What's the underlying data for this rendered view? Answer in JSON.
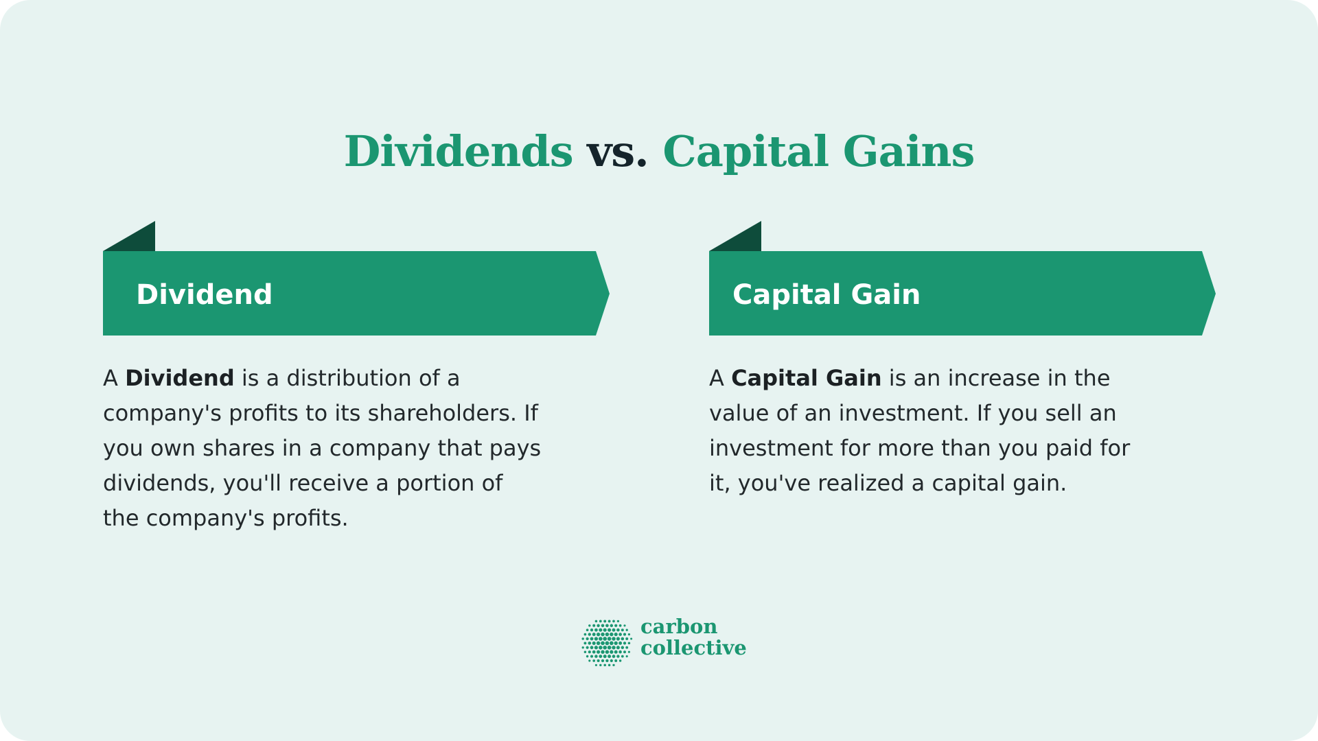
{
  "colors": {
    "background": "#e7f3f1",
    "accent_green": "#1b9671",
    "dark_green": "#0e4c3b",
    "title_dark": "#15242b",
    "body_text": "#22282b"
  },
  "title": {
    "part1": "Dividends",
    "part2": "vs.",
    "part3": "Capital Gains"
  },
  "dividend": {
    "heading": "Dividend",
    "prefix": "A ",
    "term": "Dividend",
    "lines": [
      " is a distribution of a",
      "company's profits to its shareholders. If",
      "you own shares in a company that pays",
      "dividends, you'll receive a portion of",
      "the company's profits."
    ]
  },
  "capital_gain": {
    "heading": "Capital Gain",
    "prefix": "A ",
    "term": "Capital Gain",
    "lines": [
      " is an increase in the",
      "value of an investment. If you sell an",
      "investment for more than you paid for",
      "it, you've realized a capital gain."
    ]
  },
  "logo": {
    "line1": "carbon",
    "line2": "collective",
    "icon": "dotted-globe-icon"
  }
}
